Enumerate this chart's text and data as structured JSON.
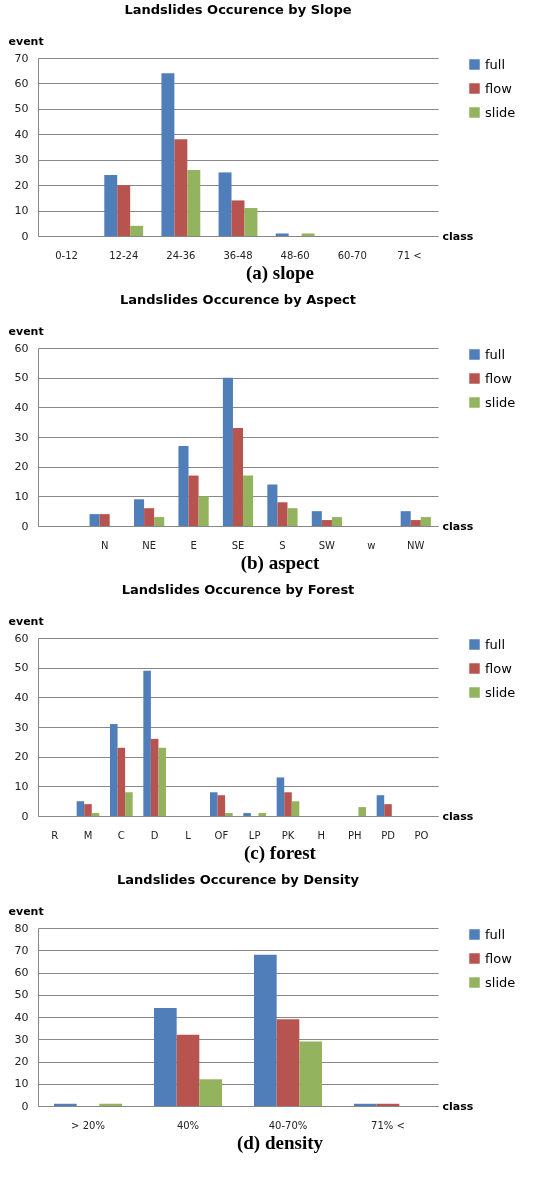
{
  "chart_data": [
    {
      "type": "bar",
      "title": "Landslides Occurence by Slope",
      "xlabel": "class",
      "ylabel": "event",
      "categories": [
        "0-12",
        "12-24",
        "24-36",
        "36-48",
        "48-60",
        "60-70",
        "71 <"
      ],
      "series": [
        {
          "name": "full",
          "color": "#4f7eb8",
          "values": [
            0,
            24,
            64,
            25,
            1,
            0,
            0
          ]
        },
        {
          "name": "flow",
          "color": "#b85450",
          "values": [
            0,
            20,
            38,
            14,
            0,
            0,
            0
          ]
        },
        {
          "name": "slide",
          "color": "#93b35f",
          "values": [
            0,
            4,
            26,
            11,
            1,
            0,
            0
          ]
        }
      ],
      "ylim": [
        0,
        70
      ],
      "yticks": [
        0,
        10,
        20,
        30,
        40,
        50,
        60,
        70
      ],
      "grid": "y",
      "legend": "right",
      "annotations": [
        "(a) slope"
      ]
    },
    {
      "type": "bar",
      "title": "Landslides Occurence by Aspect",
      "xlabel": "class",
      "ylabel": "event",
      "categories": [
        null,
        "N",
        "NE",
        "E",
        "SE",
        "S",
        "SW",
        "w",
        "NW"
      ],
      "series": [
        {
          "name": "full",
          "color": "#4f7eb8",
          "values": [
            0,
            4,
            9,
            27,
            50,
            14,
            5,
            0,
            5
          ]
        },
        {
          "name": "flow",
          "color": "#b85450",
          "values": [
            0,
            4,
            6,
            17,
            33,
            8,
            2,
            0,
            2
          ]
        },
        {
          "name": "slide",
          "color": "#93b35f",
          "values": [
            0,
            0,
            3,
            10,
            17,
            6,
            3,
            0,
            3
          ]
        }
      ],
      "ylim": [
        0,
        60
      ],
      "yticks": [
        0,
        10,
        20,
        30,
        40,
        50,
        60
      ],
      "grid": "y",
      "legend": "right",
      "annotations": [
        "(b) aspect"
      ]
    },
    {
      "type": "bar",
      "title": "Landslides Occurence by Forest",
      "xlabel": "class",
      "ylabel": "event",
      "categories": [
        "R",
        "M",
        "C",
        "D",
        "L",
        "OF",
        "LP",
        "PK",
        "H",
        "PH",
        "PD",
        "PO"
      ],
      "series": [
        {
          "name": "full",
          "color": "#4f7eb8",
          "values": [
            0,
            5,
            31,
            49,
            0,
            8,
            1,
            13,
            0,
            0,
            7,
            0
          ]
        },
        {
          "name": "flow",
          "color": "#b85450",
          "values": [
            0,
            4,
            23,
            26,
            0,
            7,
            0,
            8,
            0,
            0,
            4,
            0
          ]
        },
        {
          "name": "slide",
          "color": "#93b35f",
          "values": [
            0,
            1,
            8,
            23,
            0,
            1,
            1,
            5,
            0,
            3,
            0,
            0
          ]
        }
      ],
      "ylim": [
        0,
        60
      ],
      "yticks": [
        0,
        10,
        20,
        30,
        40,
        50,
        60
      ],
      "grid": "y",
      "legend": "right",
      "annotations": [
        "(c) forest"
      ]
    },
    {
      "type": "bar",
      "title": "Landslides Occurence by Density",
      "xlabel": "class",
      "ylabel": "event",
      "categories": [
        "> 20%",
        "40%",
        "40-70%",
        "71% <"
      ],
      "series": [
        {
          "name": "full",
          "color": "#4f7eb8",
          "values": [
            1,
            44,
            68,
            1
          ]
        },
        {
          "name": "flow",
          "color": "#b85450",
          "values": [
            0,
            32,
            39,
            1
          ]
        },
        {
          "name": "slide",
          "color": "#93b35f",
          "values": [
            1,
            12,
            29,
            0
          ]
        }
      ],
      "ylim": [
        0,
        80
      ],
      "yticks": [
        0,
        10,
        20,
        30,
        40,
        50,
        60,
        70,
        80
      ],
      "grid": "y",
      "legend": "right",
      "annotations": [
        "(d) density"
      ]
    }
  ]
}
